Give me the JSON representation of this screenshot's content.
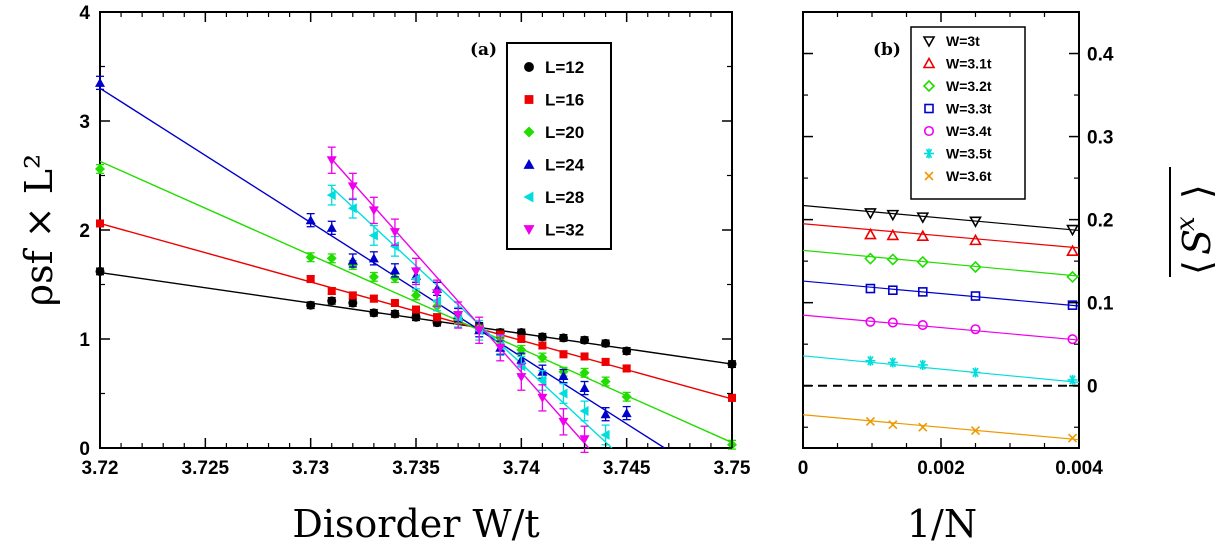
{
  "chart_data": [
    {
      "type": "line",
      "panel_label": "(a)",
      "xlabel": "Disorder W/t",
      "ylabel": "ρsf × L²",
      "xlim": [
        3.72,
        3.75
      ],
      "ylim": [
        0,
        4
      ],
      "xticks": [
        "3.72",
        "3.725",
        "3.73",
        "3.735",
        "3.74",
        "3.745",
        "3.75"
      ],
      "yticks": [
        "0",
        "1",
        "2",
        "3",
        "4"
      ],
      "legend_position": "top-right",
      "series": [
        {
          "name": "L=12",
          "color": "#000000",
          "marker": "circle",
          "points": [
            [
              3.72,
              1.62
            ],
            [
              3.73,
              1.31
            ],
            [
              3.731,
              1.35
            ],
            [
              3.732,
              1.33
            ],
            [
              3.733,
              1.24
            ],
            [
              3.734,
              1.23
            ],
            [
              3.735,
              1.2
            ],
            [
              3.736,
              1.15
            ],
            [
              3.737,
              1.17
            ],
            [
              3.738,
              1.12
            ],
            [
              3.739,
              1.06
            ],
            [
              3.74,
              1.06
            ],
            [
              3.741,
              1.02
            ],
            [
              3.742,
              1.01
            ],
            [
              3.743,
              0.99
            ],
            [
              3.744,
              0.96
            ],
            [
              3.745,
              0.89
            ],
            [
              3.75,
              0.77
            ]
          ],
          "fit": [
            [
              3.72,
              1.61
            ],
            [
              3.75,
              0.77
            ]
          ]
        },
        {
          "name": "L=16",
          "color": "#ee0000",
          "marker": "square",
          "points": [
            [
              3.72,
              2.06
            ],
            [
              3.73,
              1.55
            ],
            [
              3.731,
              1.44
            ],
            [
              3.732,
              1.4
            ],
            [
              3.733,
              1.37
            ],
            [
              3.734,
              1.33
            ],
            [
              3.735,
              1.27
            ],
            [
              3.736,
              1.2
            ],
            [
              3.737,
              1.17
            ],
            [
              3.738,
              1.1
            ],
            [
              3.739,
              1.04
            ],
            [
              3.74,
              1.0
            ],
            [
              3.741,
              0.94
            ],
            [
              3.742,
              0.86
            ],
            [
              3.743,
              0.84
            ],
            [
              3.744,
              0.79
            ],
            [
              3.745,
              0.73
            ],
            [
              3.75,
              0.46
            ]
          ],
          "fit": [
            [
              3.72,
              2.06
            ],
            [
              3.75,
              0.45
            ]
          ]
        },
        {
          "name": "L=20",
          "color": "#22dd00",
          "marker": "diamond",
          "points": [
            [
              3.72,
              2.56
            ],
            [
              3.73,
              1.75
            ],
            [
              3.731,
              1.74
            ],
            [
              3.732,
              1.68
            ],
            [
              3.733,
              1.57
            ],
            [
              3.734,
              1.56
            ],
            [
              3.735,
              1.4
            ],
            [
              3.736,
              1.3
            ],
            [
              3.737,
              1.18
            ],
            [
              3.738,
              1.1
            ],
            [
              3.739,
              0.98
            ],
            [
              3.74,
              0.9
            ],
            [
              3.741,
              0.83
            ],
            [
              3.742,
              0.7
            ],
            [
              3.743,
              0.69
            ],
            [
              3.744,
              0.61
            ],
            [
              3.745,
              0.47
            ],
            [
              3.75,
              0.03
            ]
          ],
          "fit": [
            [
              3.72,
              2.63
            ],
            [
              3.75,
              0.05
            ]
          ]
        },
        {
          "name": "L=24",
          "color": "#0000cc",
          "marker": "triangle-up",
          "points": [
            [
              3.72,
              3.35
            ],
            [
              3.73,
              2.09
            ],
            [
              3.731,
              2.02
            ],
            [
              3.732,
              1.72
            ],
            [
              3.733,
              1.74
            ],
            [
              3.734,
              1.63
            ],
            [
              3.735,
              1.58
            ],
            [
              3.736,
              1.46
            ],
            [
              3.737,
              1.22
            ],
            [
              3.738,
              1.08
            ],
            [
              3.739,
              0.92
            ],
            [
              3.74,
              0.81
            ],
            [
              3.741,
              0.7
            ],
            [
              3.742,
              0.66
            ],
            [
              3.743,
              0.55
            ],
            [
              3.744,
              0.31
            ],
            [
              3.745,
              0.32
            ]
          ],
          "fit": [
            [
              3.72,
              3.3
            ],
            [
              3.7468,
              0.0
            ]
          ]
        },
        {
          "name": "L=28",
          "color": "#00dddd",
          "marker": "triangle-left",
          "points": [
            [
              3.731,
              2.32
            ],
            [
              3.732,
              2.2
            ],
            [
              3.733,
              1.95
            ],
            [
              3.734,
              1.85
            ],
            [
              3.735,
              1.55
            ],
            [
              3.736,
              1.35
            ],
            [
              3.737,
              1.2
            ],
            [
              3.738,
              1.08
            ],
            [
              3.739,
              0.94
            ],
            [
              3.74,
              0.75
            ],
            [
              3.741,
              0.62
            ],
            [
              3.742,
              0.5
            ],
            [
              3.743,
              0.34
            ],
            [
              3.744,
              0.12
            ]
          ],
          "fit": [
            [
              3.731,
              2.39
            ],
            [
              3.7443,
              0.0
            ]
          ]
        },
        {
          "name": "L=32",
          "color": "#ee00ee",
          "marker": "triangle-down",
          "points": [
            [
              3.731,
              2.64
            ],
            [
              3.732,
              2.4
            ],
            [
              3.733,
              2.18
            ],
            [
              3.734,
              1.98
            ],
            [
              3.735,
              1.62
            ],
            [
              3.736,
              1.42
            ],
            [
              3.737,
              1.22
            ],
            [
              3.738,
              1.08
            ],
            [
              3.739,
              0.92
            ],
            [
              3.74,
              0.65
            ],
            [
              3.741,
              0.46
            ],
            [
              3.742,
              0.24
            ],
            [
              3.743,
              0.08
            ]
          ],
          "fit": [
            [
              3.731,
              2.65
            ],
            [
              3.7432,
              0.0
            ]
          ]
        }
      ]
    },
    {
      "type": "line",
      "panel_label": "(b)",
      "xlabel": "1/N",
      "ylabel": "S^x",
      "xlim": [
        0,
        0.004
      ],
      "ylim": [
        -0.075,
        0.45
      ],
      "xticks": [
        "0",
        "0.002",
        "0.004"
      ],
      "yticks": [
        "0",
        "0.1",
        "0.2",
        "0.3",
        "0.4"
      ],
      "legend_position": "top-right",
      "series": [
        {
          "name": "W=3t",
          "color": "#000000",
          "marker": "triangle-down-open",
          "points": [
            [
              0.000977,
              0.208
            ],
            [
              0.001302,
              0.206
            ],
            [
              0.001736,
              0.203
            ],
            [
              0.0025,
              0.198
            ],
            [
              0.003906,
              0.188
            ]
          ],
          "fit": [
            [
              0,
              0.217
            ],
            [
              0.004,
              0.187
            ]
          ]
        },
        {
          "name": "W=3.1t",
          "color": "#ee0000",
          "marker": "triangle-up-open",
          "points": [
            [
              0.000977,
              0.182
            ],
            [
              0.001302,
              0.181
            ],
            [
              0.001736,
              0.18
            ],
            [
              0.0025,
              0.175
            ],
            [
              0.003906,
              0.162
            ]
          ],
          "fit": [
            [
              0,
              0.195
            ],
            [
              0.004,
              0.166
            ]
          ]
        },
        {
          "name": "W=3.2t",
          "color": "#22dd00",
          "marker": "diamond-open",
          "points": [
            [
              0.000977,
              0.153
            ],
            [
              0.001302,
              0.152
            ],
            [
              0.001736,
              0.149
            ],
            [
              0.0025,
              0.143
            ],
            [
              0.003906,
              0.131
            ]
          ],
          "fit": [
            [
              0,
              0.163
            ],
            [
              0.004,
              0.132
            ]
          ]
        },
        {
          "name": "W=3.3t",
          "color": "#0000cc",
          "marker": "square-open",
          "points": [
            [
              0.000977,
              0.117
            ],
            [
              0.001302,
              0.115
            ],
            [
              0.001736,
              0.113
            ],
            [
              0.0025,
              0.108
            ],
            [
              0.003906,
              0.097
            ]
          ],
          "fit": [
            [
              0,
              0.126
            ],
            [
              0.004,
              0.096
            ]
          ]
        },
        {
          "name": "W=3.4t",
          "color": "#ee00ee",
          "marker": "circle-open",
          "points": [
            [
              0.000977,
              0.077
            ],
            [
              0.001302,
              0.076
            ],
            [
              0.001736,
              0.073
            ],
            [
              0.0025,
              0.068
            ],
            [
              0.003906,
              0.056
            ]
          ],
          "fit": [
            [
              0,
              0.085
            ],
            [
              0.004,
              0.055
            ]
          ]
        },
        {
          "name": "W=3.5t",
          "color": "#00dddd",
          "marker": "asterisk",
          "points": [
            [
              0.000977,
              0.03
            ],
            [
              0.001302,
              0.028
            ],
            [
              0.001736,
              0.025
            ],
            [
              0.0025,
              0.016
            ],
            [
              0.003906,
              0.007
            ]
          ],
          "fit": [
            [
              0,
              0.036
            ],
            [
              0.004,
              0.004
            ]
          ]
        },
        {
          "name": "W=3.6t",
          "color": "#ee9900",
          "marker": "cross",
          "points": [
            [
              0.000977,
              -0.043
            ],
            [
              0.001302,
              -0.047
            ],
            [
              0.001736,
              -0.05
            ],
            [
              0.0025,
              -0.054
            ],
            [
              0.003906,
              -0.063
            ]
          ],
          "fit": [
            [
              0,
              -0.035
            ],
            [
              0.004,
              -0.065
            ]
          ]
        }
      ],
      "reference_line": {
        "y": 0,
        "style": "dashed",
        "color": "#000000"
      }
    }
  ]
}
